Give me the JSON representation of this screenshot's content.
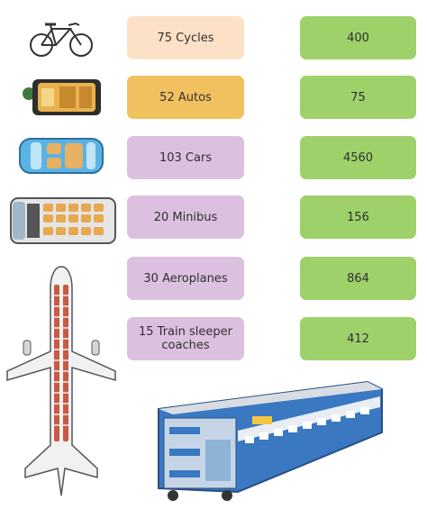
{
  "rows": [
    {
      "label": "75 Cycles",
      "value": "400",
      "icon": "bicycle-icon",
      "label_color": "#fde1c6"
    },
    {
      "label": "52 Autos",
      "value": "75",
      "icon": "auto-rickshaw-icon",
      "label_color": "#f2c15f"
    },
    {
      "label": "103 Cars",
      "value": "4560",
      "icon": "car-icon",
      "label_color": "#dcc0e0"
    },
    {
      "label": "20 Minibus",
      "value": "156",
      "icon": "minibus-icon",
      "label_color": "#dcc0e0"
    },
    {
      "label": "30 Aeroplanes",
      "value": "864",
      "icon": "aeroplane-icon",
      "label_color": "#dcc0e0"
    },
    {
      "label": "15 Train sleeper coaches",
      "value": "412",
      "icon": "train-coach-icon",
      "label_color": "#dcc0e0"
    }
  ],
  "colors": {
    "value_card": "#9fd16b",
    "train_body": "#3a78c2"
  }
}
